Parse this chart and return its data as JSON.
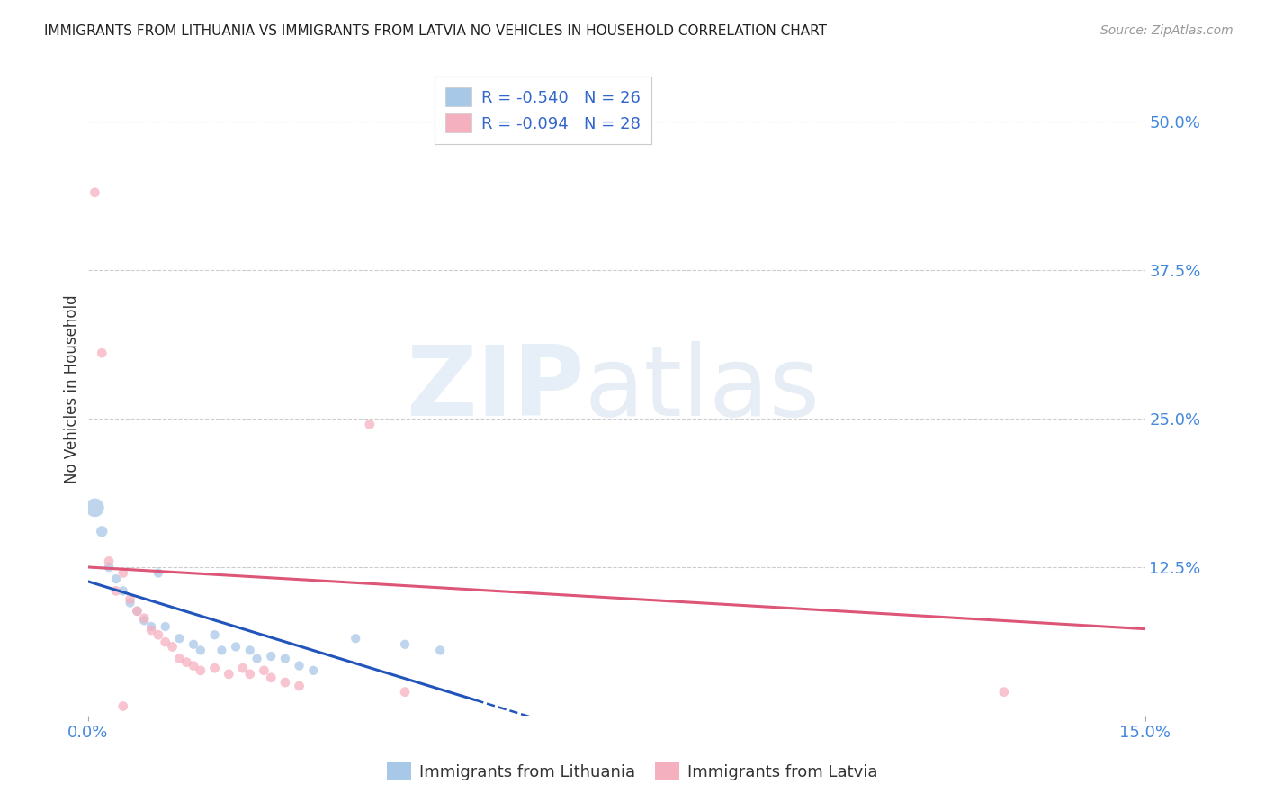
{
  "title": "IMMIGRANTS FROM LITHUANIA VS IMMIGRANTS FROM LATVIA NO VEHICLES IN HOUSEHOLD CORRELATION CHART",
  "source": "Source: ZipAtlas.com",
  "ylabel": "No Vehicles in Household",
  "xlim": [
    0.0,
    0.15
  ],
  "ylim": [
    0.0,
    0.55
  ],
  "xtick_labels": [
    "0.0%",
    "15.0%"
  ],
  "xtick_vals": [
    0.0,
    0.15
  ],
  "ytick_labels": [
    "12.5%",
    "25.0%",
    "37.5%",
    "50.0%"
  ],
  "ytick_vals": [
    0.125,
    0.25,
    0.375,
    0.5
  ],
  "grid_color": "#cccccc",
  "background_color": "#ffffff",
  "legend_R_lit": "-0.540",
  "legend_N_lit": "26",
  "legend_R_lat": "-0.094",
  "legend_N_lat": "28",
  "color_lithuania": "#a8c8e8",
  "color_latvia": "#f5b0c0",
  "trendline_lithuania": "#2255bb",
  "trendline_latvia": "#dd5577",
  "lithuania_points": [
    [
      0.001,
      0.175,
      220
    ],
    [
      0.002,
      0.155,
      80
    ],
    [
      0.003,
      0.125,
      60
    ],
    [
      0.004,
      0.115,
      55
    ],
    [
      0.005,
      0.105,
      55
    ],
    [
      0.006,
      0.095,
      55
    ],
    [
      0.007,
      0.088,
      55
    ],
    [
      0.008,
      0.08,
      55
    ],
    [
      0.009,
      0.075,
      55
    ],
    [
      0.01,
      0.12,
      55
    ],
    [
      0.011,
      0.075,
      55
    ],
    [
      0.013,
      0.065,
      55
    ],
    [
      0.015,
      0.06,
      55
    ],
    [
      0.016,
      0.055,
      55
    ],
    [
      0.018,
      0.068,
      55
    ],
    [
      0.019,
      0.055,
      55
    ],
    [
      0.021,
      0.058,
      55
    ],
    [
      0.023,
      0.055,
      55
    ],
    [
      0.024,
      0.048,
      55
    ],
    [
      0.026,
      0.05,
      55
    ],
    [
      0.028,
      0.048,
      55
    ],
    [
      0.03,
      0.042,
      55
    ],
    [
      0.032,
      0.038,
      55
    ],
    [
      0.038,
      0.065,
      55
    ],
    [
      0.045,
      0.06,
      55
    ],
    [
      0.05,
      0.055,
      55
    ]
  ],
  "latvia_points": [
    [
      0.001,
      0.44,
      60
    ],
    [
      0.002,
      0.305,
      60
    ],
    [
      0.003,
      0.13,
      60
    ],
    [
      0.004,
      0.105,
      60
    ],
    [
      0.005,
      0.12,
      60
    ],
    [
      0.006,
      0.098,
      60
    ],
    [
      0.007,
      0.088,
      60
    ],
    [
      0.008,
      0.082,
      60
    ],
    [
      0.009,
      0.072,
      60
    ],
    [
      0.01,
      0.068,
      60
    ],
    [
      0.011,
      0.062,
      60
    ],
    [
      0.012,
      0.058,
      60
    ],
    [
      0.013,
      0.048,
      60
    ],
    [
      0.014,
      0.045,
      60
    ],
    [
      0.015,
      0.042,
      60
    ],
    [
      0.016,
      0.038,
      60
    ],
    [
      0.018,
      0.04,
      60
    ],
    [
      0.02,
      0.035,
      60
    ],
    [
      0.022,
      0.04,
      60
    ],
    [
      0.023,
      0.035,
      60
    ],
    [
      0.025,
      0.038,
      60
    ],
    [
      0.026,
      0.032,
      60
    ],
    [
      0.028,
      0.028,
      60
    ],
    [
      0.03,
      0.025,
      60
    ],
    [
      0.04,
      0.245,
      60
    ],
    [
      0.045,
      0.02,
      60
    ],
    [
      0.13,
      0.02,
      60
    ],
    [
      0.005,
      0.008,
      60
    ]
  ],
  "trendline_lit_x0": 0.0,
  "trendline_lit_x1": 0.065,
  "trendline_lit_y0": 0.113,
  "trendline_lit_y1": -0.005,
  "trendline_lit_solid_end": 0.055,
  "trendline_lat_x0": 0.0,
  "trendline_lat_x1": 0.15,
  "trendline_lat_y0": 0.125,
  "trendline_lat_y1": 0.073
}
